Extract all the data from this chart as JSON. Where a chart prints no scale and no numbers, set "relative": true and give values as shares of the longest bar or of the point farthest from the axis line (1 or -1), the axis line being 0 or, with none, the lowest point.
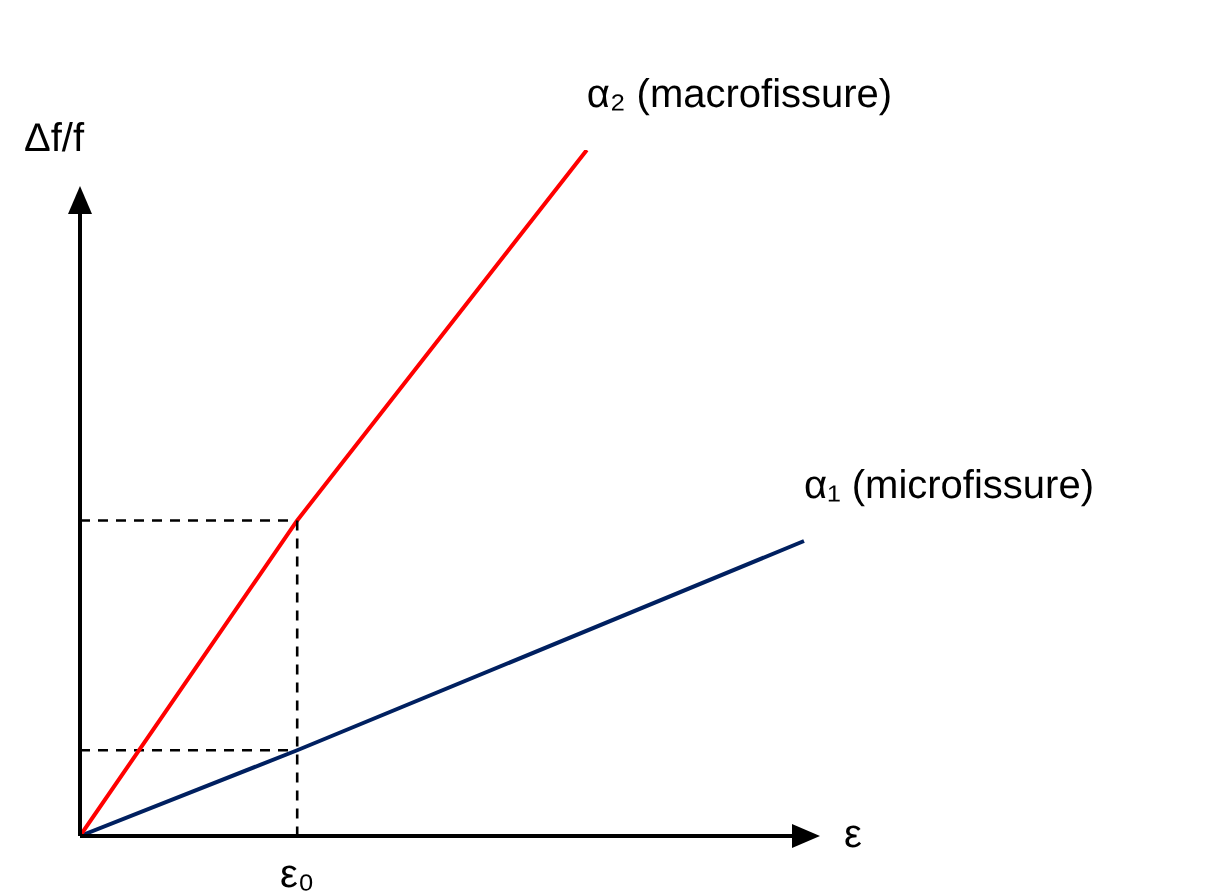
{
  "chart_data": {
    "type": "line",
    "relative": true,
    "xlabel": "ε",
    "ylabel": "Δf/f",
    "annotations": [
      "ε₀"
    ],
    "categories": [
      null,
      null,
      null,
      null,
      null,
      null,
      null,
      null,
      null,
      null,
      null
    ],
    "series": [
      {
        "name": "α₂ (macrofissure)",
        "color": "#ff0000",
        "values": [
          0,
          null,
          null,
          0.46,
          null,
          null,
          null,
          1,
          null,
          null,
          null
        ]
      },
      {
        "name": "α₁ (microfissure)",
        "color": "#002060",
        "values": [
          0,
          null,
          null,
          0.125,
          null,
          null,
          null,
          null,
          null,
          null,
          0.43
        ]
      },
      {
        "color": "#000000",
        "line_style": "dashed",
        "values": [
          0.46,
          null,
          null,
          0.46,
          null,
          null,
          null,
          null,
          null,
          null,
          null
        ]
      },
      {
        "color": "#000000",
        "line_style": "dashed",
        "values": [
          0.125,
          null,
          null,
          0.125,
          null,
          null,
          null,
          null,
          null,
          null,
          null
        ]
      }
    ],
    "legend": false,
    "marker": "none",
    "line_style": "solid"
  }
}
